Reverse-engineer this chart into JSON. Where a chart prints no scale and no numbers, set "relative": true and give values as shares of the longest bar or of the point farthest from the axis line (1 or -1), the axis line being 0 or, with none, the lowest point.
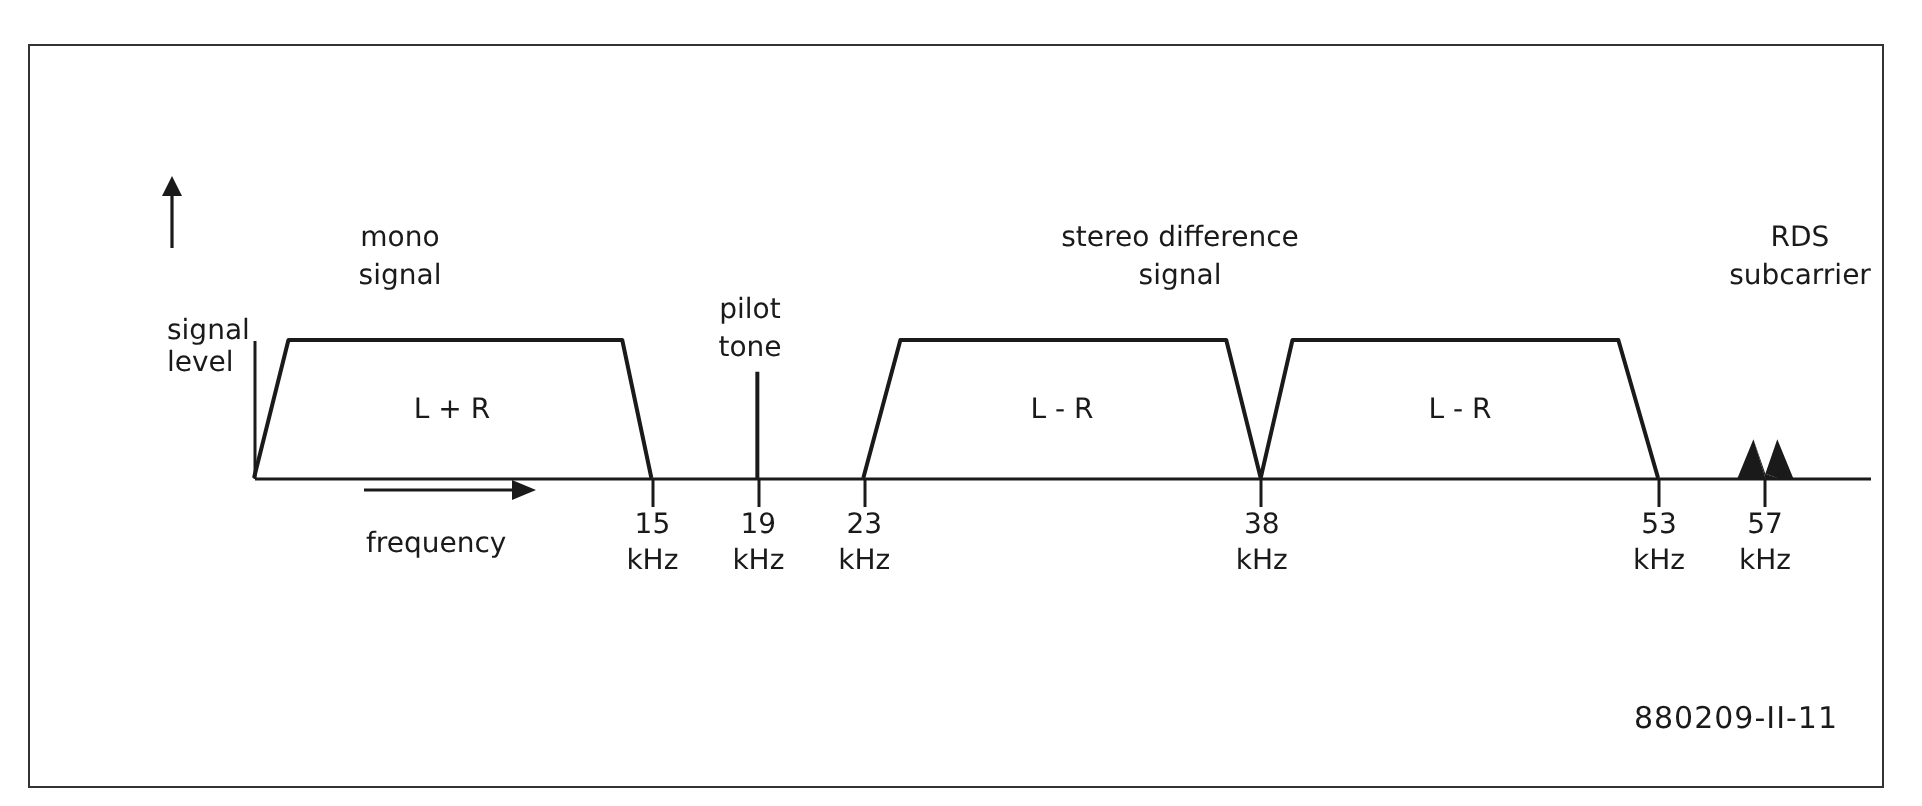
{
  "chart_data": {
    "type": "line",
    "relative": true,
    "xlabel": "frequency",
    "ylabel": "signal\nlevel",
    "xlim": [
      0,
      61
    ],
    "xticks": [
      {
        "value": 15,
        "label": "15 kHz"
      },
      {
        "value": 19,
        "label": "19 kHz"
      },
      {
        "value": 23,
        "label": "23 kHz"
      },
      {
        "value": 38,
        "label": "38 kHz"
      },
      {
        "value": 53,
        "label": "53 kHz"
      },
      {
        "value": 57,
        "label": "57 kHz"
      }
    ],
    "series": [
      {
        "color": "#1a1a1a",
        "x": [
          0,
          1.3,
          13.9,
          15,
          19,
          23,
          24.4,
          36.7,
          38,
          39.2,
          51.5,
          53
        ],
        "values": [
          0,
          1,
          1,
          0,
          null,
          0,
          1,
          1,
          0,
          1,
          1,
          0
        ]
      },
      {
        "type": "bar",
        "color": "#1a1a1a",
        "x": [
          19
        ],
        "values": [
          0.77
        ]
      },
      {
        "type": "area",
        "color": "#1a1a1a",
        "x": [
          56,
          56.6,
          57.05,
          57.5,
          58.1
        ],
        "values": [
          0,
          0.28,
          0.03,
          0.28,
          0
        ]
      }
    ],
    "annotations": [
      "mono\nsignal",
      "pilot\ntone",
      "stereo difference\nsignal",
      "RDS\nsubcarrier",
      "L + R",
      "L - R",
      "L - R",
      "880209-II-11"
    ]
  }
}
